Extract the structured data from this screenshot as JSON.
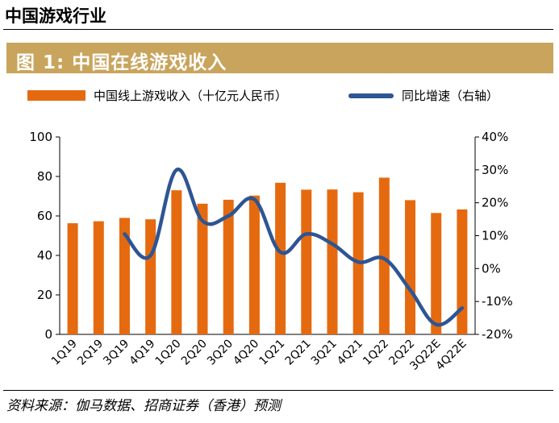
{
  "header": {
    "title": "中国游戏行业"
  },
  "figure": {
    "title": "图 1: 中国在线游戏收入"
  },
  "source": "资料来源：伽马数据、招商证券（香港）预测",
  "colors": {
    "bar": "#e56a0f",
    "line": "#2e5593",
    "banner": "#c9a45c"
  },
  "chart_data": {
    "type": "bar",
    "categories": [
      "1Q19",
      "2Q19",
      "3Q19",
      "4Q19",
      "1Q20",
      "2Q20",
      "3Q20",
      "4Q20",
      "1Q21",
      "2Q21",
      "3Q21",
      "4Q21",
      "1Q22",
      "2Q22",
      "3Q22E",
      "4Q22E"
    ],
    "series": [
      {
        "name": "中国线上游戏收入（十亿元人民币）",
        "type": "bar",
        "axis": "left",
        "values": [
          56.3,
          57.3,
          59.0,
          58.3,
          73.0,
          66.2,
          68.2,
          70.3,
          76.8,
          73.3,
          73.4,
          72.0,
          79.4,
          68.0,
          61.5,
          63.3
        ]
      },
      {
        "name": "同比增速（右轴）",
        "type": "line",
        "axis": "right",
        "values": [
          null,
          null,
          10.5,
          4.0,
          30.0,
          14.5,
          16.0,
          21.0,
          5.0,
          10.5,
          7.5,
          2.0,
          3.0,
          -6.5,
          -17.0,
          -12.0
        ]
      }
    ],
    "left_axis": {
      "min": 0,
      "max": 100,
      "ticks": [
        "0",
        "20",
        "40",
        "60",
        "80",
        "100"
      ]
    },
    "right_axis": {
      "min": -20,
      "max": 40,
      "ticks": [
        "-20%",
        "-10%",
        "0%",
        "10%",
        "20%",
        "30%",
        "40%"
      ]
    },
    "legend_position": "top"
  }
}
